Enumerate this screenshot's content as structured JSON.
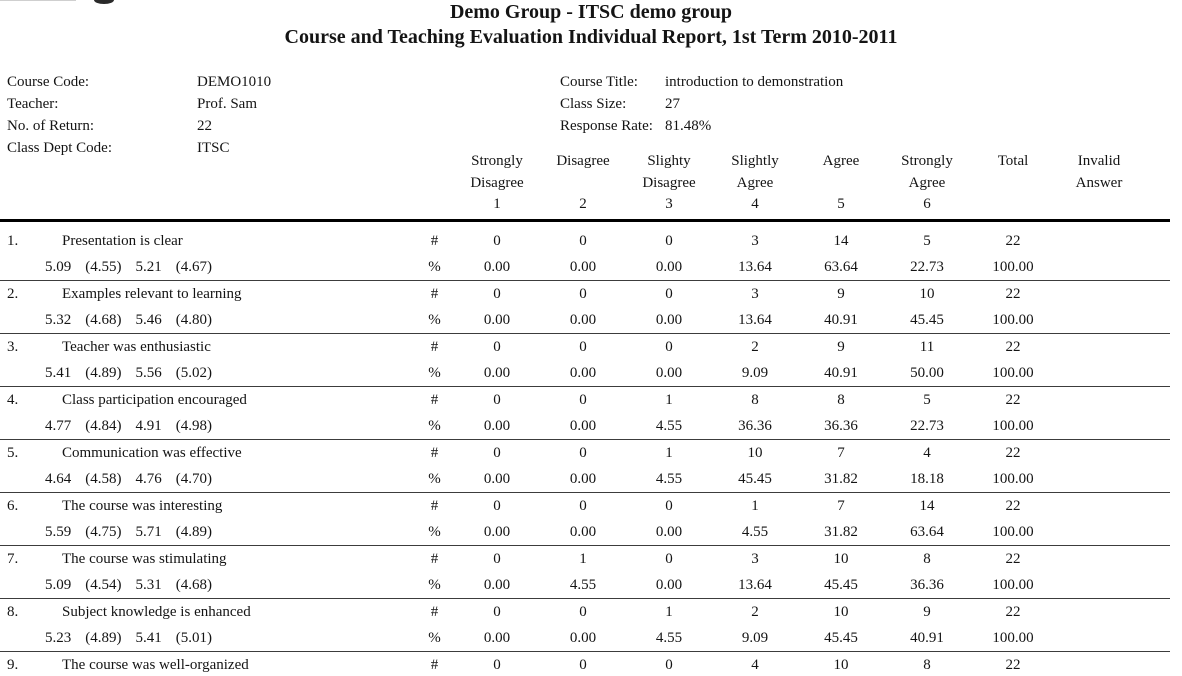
{
  "header": {
    "title_line1": "Demo Group - ITSC demo group",
    "title_line2": "Course and Teaching Evaluation Individual Report, 1st Term 2010-2011"
  },
  "decorations": {
    "logo_fragment": "partial-logo-top-left"
  },
  "info": {
    "left": [
      {
        "label": "Course Code:",
        "value": "DEMO1010"
      },
      {
        "label": "Teacher:",
        "value": "Prof. Sam"
      },
      {
        "label": "No. of Return:",
        "value": "22"
      },
      {
        "label": "Class Dept Code:",
        "value": "ITSC"
      }
    ],
    "right": [
      {
        "label": "Course Title:",
        "value": "introduction to demonstration"
      },
      {
        "label": "Class Size:",
        "value": "27"
      },
      {
        "label": "Response Rate:",
        "value": "81.48%"
      }
    ]
  },
  "table": {
    "count_symbol": "#",
    "percent_symbol": "%",
    "columns": [
      {
        "lines": [
          "Strongly",
          "Disagree"
        ],
        "num": "1"
      },
      {
        "lines": [
          "Disagree",
          ""
        ],
        "num": "2"
      },
      {
        "lines": [
          "Slighty",
          "Disagree"
        ],
        "num": "3"
      },
      {
        "lines": [
          "Slightly",
          "Agree"
        ],
        "num": "4"
      },
      {
        "lines": [
          "Agree",
          ""
        ],
        "num": "5"
      },
      {
        "lines": [
          "Strongly",
          "Agree"
        ],
        "num": "6"
      },
      {
        "lines": [
          "Total",
          ""
        ],
        "num": ""
      },
      {
        "lines": [
          "Invalid",
          "Answer"
        ],
        "num": ""
      }
    ],
    "rows": [
      {
        "num": "1.",
        "question": "Presentation is clear",
        "stats": [
          "5.09",
          "(4.55)",
          "5.21",
          "(4.67)"
        ],
        "counts": [
          "0",
          "0",
          "0",
          "3",
          "14",
          "5",
          "22",
          ""
        ],
        "percents": [
          "0.00",
          "0.00",
          "0.00",
          "13.64",
          "63.64",
          "22.73",
          "100.00",
          ""
        ]
      },
      {
        "num": "2.",
        "question": "Examples relevant to learning",
        "stats": [
          "5.32",
          "(4.68)",
          "5.46",
          "(4.80)"
        ],
        "counts": [
          "0",
          "0",
          "0",
          "3",
          "9",
          "10",
          "22",
          ""
        ],
        "percents": [
          "0.00",
          "0.00",
          "0.00",
          "13.64",
          "40.91",
          "45.45",
          "100.00",
          ""
        ]
      },
      {
        "num": "3.",
        "question": "Teacher was enthusiastic",
        "stats": [
          "5.41",
          "(4.89)",
          "5.56",
          "(5.02)"
        ],
        "counts": [
          "0",
          "0",
          "0",
          "2",
          "9",
          "11",
          "22",
          ""
        ],
        "percents": [
          "0.00",
          "0.00",
          "0.00",
          "9.09",
          "40.91",
          "50.00",
          "100.00",
          ""
        ]
      },
      {
        "num": "4.",
        "question": "Class participation encouraged",
        "stats": [
          "4.77",
          "(4.84)",
          "4.91",
          "(4.98)"
        ],
        "counts": [
          "0",
          "0",
          "1",
          "8",
          "8",
          "5",
          "22",
          ""
        ],
        "percents": [
          "0.00",
          "0.00",
          "4.55",
          "36.36",
          "36.36",
          "22.73",
          "100.00",
          ""
        ]
      },
      {
        "num": "5.",
        "question": "Communication was effective",
        "stats": [
          "4.64",
          "(4.58)",
          "4.76",
          "(4.70)"
        ],
        "counts": [
          "0",
          "0",
          "1",
          "10",
          "7",
          "4",
          "22",
          ""
        ],
        "percents": [
          "0.00",
          "0.00",
          "4.55",
          "45.45",
          "31.82",
          "18.18",
          "100.00",
          ""
        ]
      },
      {
        "num": "6.",
        "question": "The course was interesting",
        "stats": [
          "5.59",
          "(4.75)",
          "5.71",
          "(4.89)"
        ],
        "counts": [
          "0",
          "0",
          "0",
          "1",
          "7",
          "14",
          "22",
          ""
        ],
        "percents": [
          "0.00",
          "0.00",
          "0.00",
          "4.55",
          "31.82",
          "63.64",
          "100.00",
          ""
        ]
      },
      {
        "num": "7.",
        "question": "The course was stimulating",
        "stats": [
          "5.09",
          "(4.54)",
          "5.31",
          "(4.68)"
        ],
        "counts": [
          "0",
          "1",
          "0",
          "3",
          "10",
          "8",
          "22",
          ""
        ],
        "percents": [
          "0.00",
          "4.55",
          "0.00",
          "13.64",
          "45.45",
          "36.36",
          "100.00",
          ""
        ]
      },
      {
        "num": "8.",
        "question": "Subject knowledge is enhanced",
        "stats": [
          "5.23",
          "(4.89)",
          "5.41",
          "(5.01)"
        ],
        "counts": [
          "0",
          "0",
          "1",
          "2",
          "10",
          "9",
          "22",
          ""
        ],
        "percents": [
          "0.00",
          "0.00",
          "4.55",
          "9.09",
          "45.45",
          "40.91",
          "100.00",
          ""
        ]
      },
      {
        "num": "9.",
        "question": "The course was well-organized",
        "stats": null,
        "counts": [
          "0",
          "0",
          "0",
          "4",
          "10",
          "8",
          "22",
          ""
        ],
        "percents": null
      }
    ]
  }
}
